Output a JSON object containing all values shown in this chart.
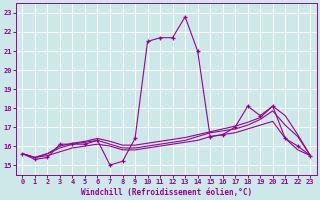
{
  "xlabel": "Windchill (Refroidissement éolien,°C)",
  "xlim": [
    -0.5,
    23.5
  ],
  "ylim": [
    14.5,
    23.5
  ],
  "xticks": [
    0,
    1,
    2,
    3,
    4,
    5,
    6,
    7,
    8,
    9,
    10,
    11,
    12,
    13,
    14,
    15,
    16,
    17,
    18,
    19,
    20,
    21,
    22,
    23
  ],
  "yticks": [
    15,
    16,
    17,
    18,
    19,
    20,
    21,
    22,
    23
  ],
  "background_color": "#cce8e8",
  "grid_color": "#ffffff",
  "line_color": "#990099",
  "curve_main": {
    "x": [
      0,
      1,
      2,
      3,
      4,
      5,
      6,
      7,
      8,
      9,
      10,
      11,
      12,
      13,
      14,
      15,
      16,
      17,
      18,
      19,
      20,
      21,
      22,
      23
    ],
    "y": [
      15.6,
      15.3,
      15.4,
      16.1,
      16.1,
      16.1,
      16.3,
      15.0,
      15.2,
      16.4,
      21.5,
      21.7,
      21.7,
      22.8,
      21.0,
      16.5,
      16.6,
      17.0,
      18.1,
      17.6,
      18.1,
      16.4,
      16.0,
      15.5
    ]
  },
  "curve_smooth1": {
    "x": [
      0,
      1,
      2,
      3,
      4,
      5,
      6,
      7,
      8,
      9,
      10,
      11,
      12,
      13,
      14,
      15,
      16,
      17,
      18,
      19,
      20,
      21,
      22,
      23
    ],
    "y": [
      15.6,
      15.4,
      15.5,
      15.7,
      15.9,
      16.0,
      16.1,
      16.0,
      15.8,
      15.8,
      15.9,
      16.0,
      16.1,
      16.2,
      16.3,
      16.5,
      16.6,
      16.7,
      16.9,
      17.1,
      17.3,
      16.4,
      15.8,
      15.5
    ]
  },
  "curve_smooth2": {
    "x": [
      0,
      1,
      2,
      3,
      4,
      5,
      6,
      7,
      8,
      9,
      10,
      11,
      12,
      13,
      14,
      15,
      16,
      17,
      18,
      19,
      20,
      21,
      22,
      23
    ],
    "y": [
      15.6,
      15.4,
      15.6,
      15.9,
      16.1,
      16.2,
      16.3,
      16.1,
      15.9,
      15.9,
      16.0,
      16.1,
      16.2,
      16.3,
      16.5,
      16.7,
      16.8,
      16.9,
      17.1,
      17.4,
      17.85,
      17.1,
      16.5,
      15.5
    ]
  },
  "curve_smooth3": {
    "x": [
      0,
      1,
      2,
      3,
      4,
      5,
      6,
      7,
      8,
      9,
      10,
      11,
      12,
      13,
      14,
      15,
      16,
      17,
      18,
      19,
      20,
      21,
      22,
      23
    ],
    "y": [
      15.6,
      15.4,
      15.6,
      16.0,
      16.15,
      16.25,
      16.4,
      16.25,
      16.05,
      16.05,
      16.15,
      16.25,
      16.35,
      16.45,
      16.6,
      16.75,
      16.9,
      17.05,
      17.25,
      17.5,
      18.1,
      17.6,
      16.6,
      15.5
    ]
  }
}
